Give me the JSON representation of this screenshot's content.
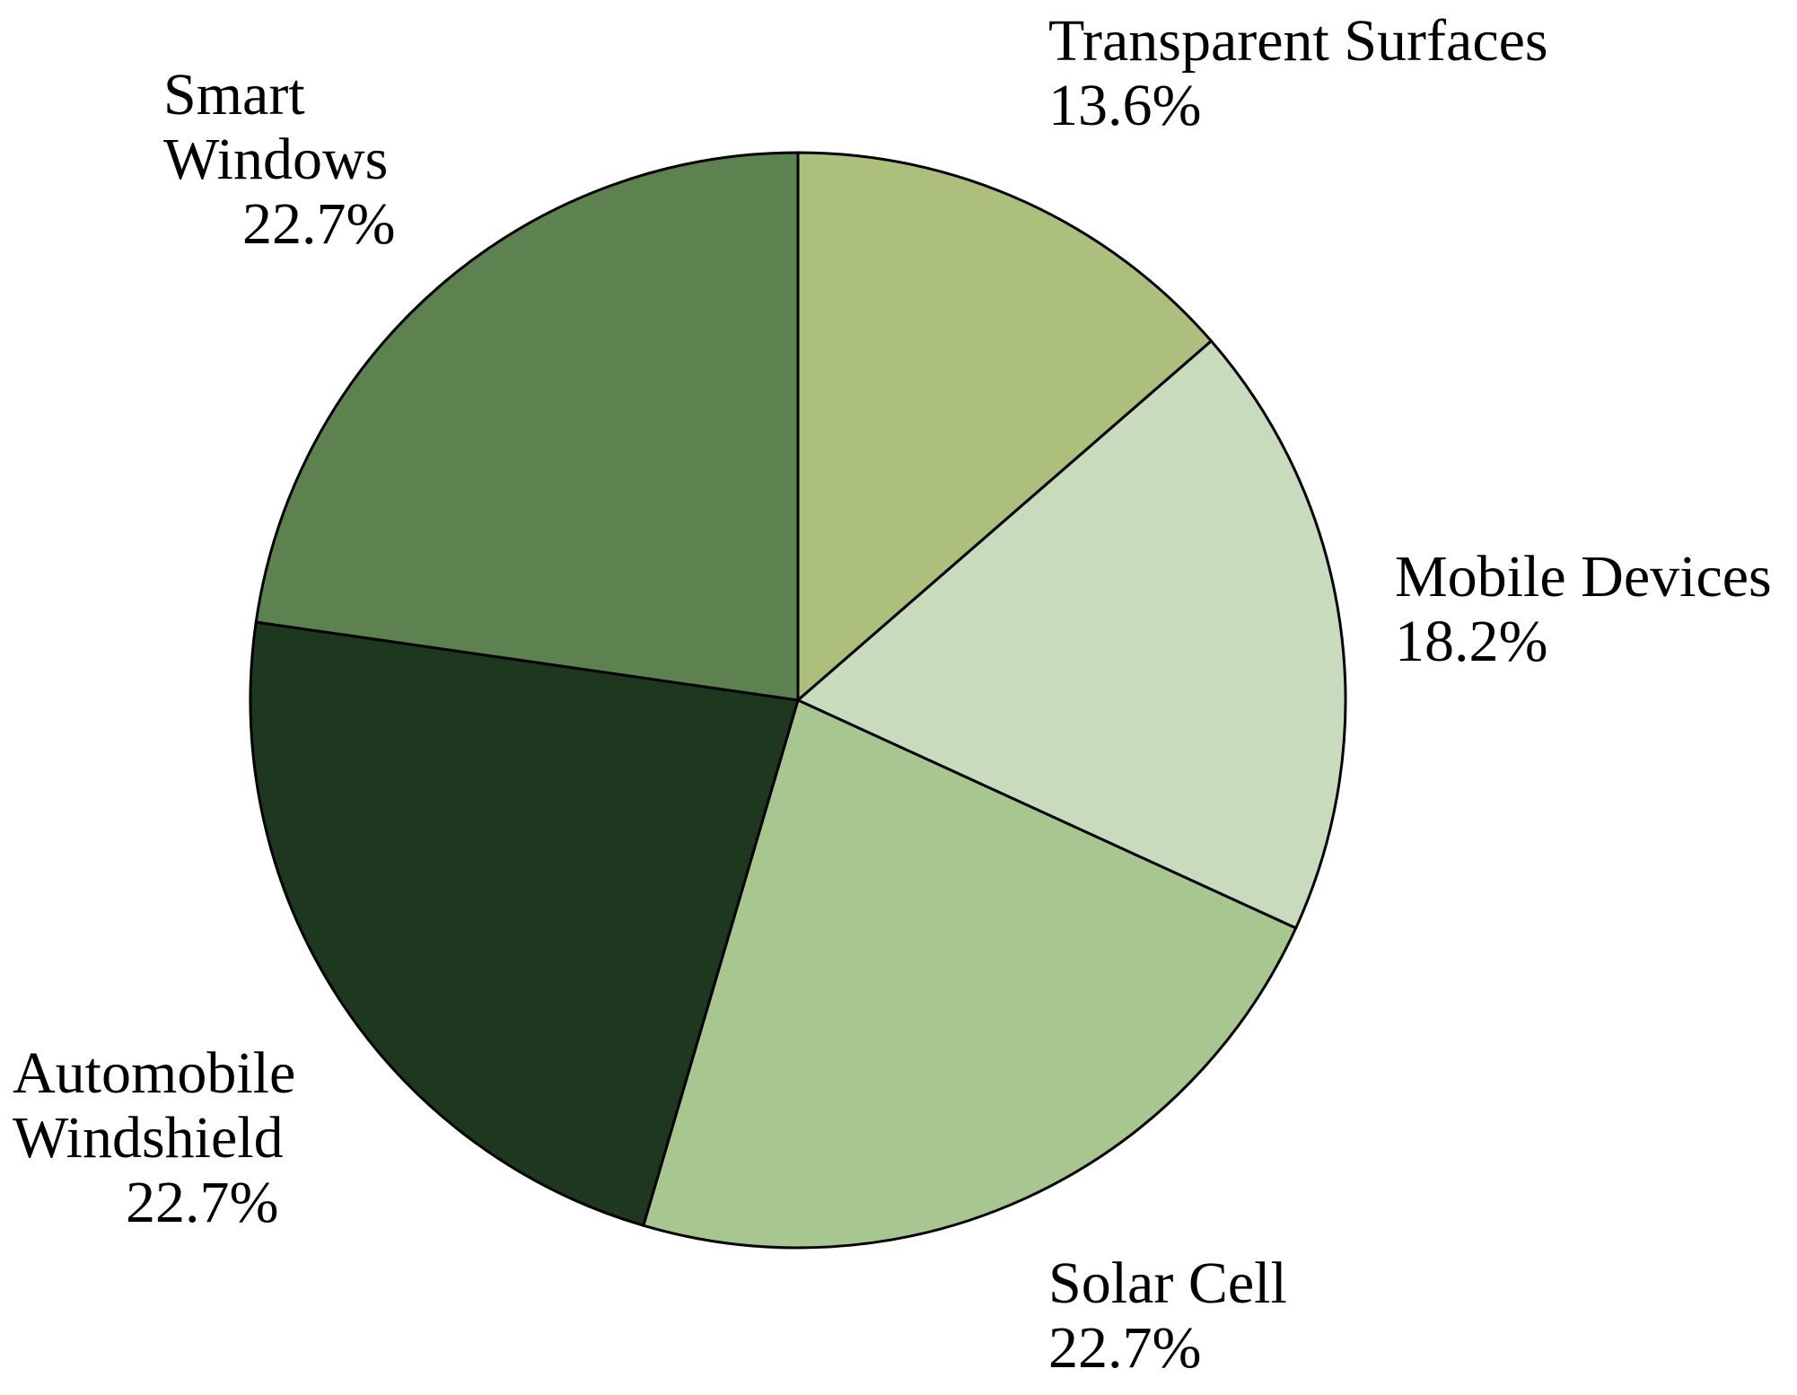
{
  "chart_data": {
    "type": "pie",
    "title": "",
    "start_angle_deg": 0,
    "direction": "clockwise",
    "slices": [
      {
        "label_lines": [
          "Transparent Surfaces"
        ],
        "percent_label": "13.6%",
        "value": 13.6,
        "color": "#adbf7d"
      },
      {
        "label_lines": [
          "Mobile Devices"
        ],
        "percent_label": "18.2%",
        "value": 18.2,
        "color": "#c8dbbd"
      },
      {
        "label_lines": [
          "Solar Cell"
        ],
        "percent_label": "22.7%",
        "value": 22.7,
        "color": "#a8c68f"
      },
      {
        "label_lines": [
          "Automobile",
          "Windshield"
        ],
        "percent_label": "22.7%",
        "value": 22.7,
        "color": "#1e3820"
      },
      {
        "label_lines": [
          "Smart",
          "Windows"
        ],
        "percent_label": "22.7%",
        "value": 22.7,
        "color": "#5e8150"
      }
    ]
  }
}
